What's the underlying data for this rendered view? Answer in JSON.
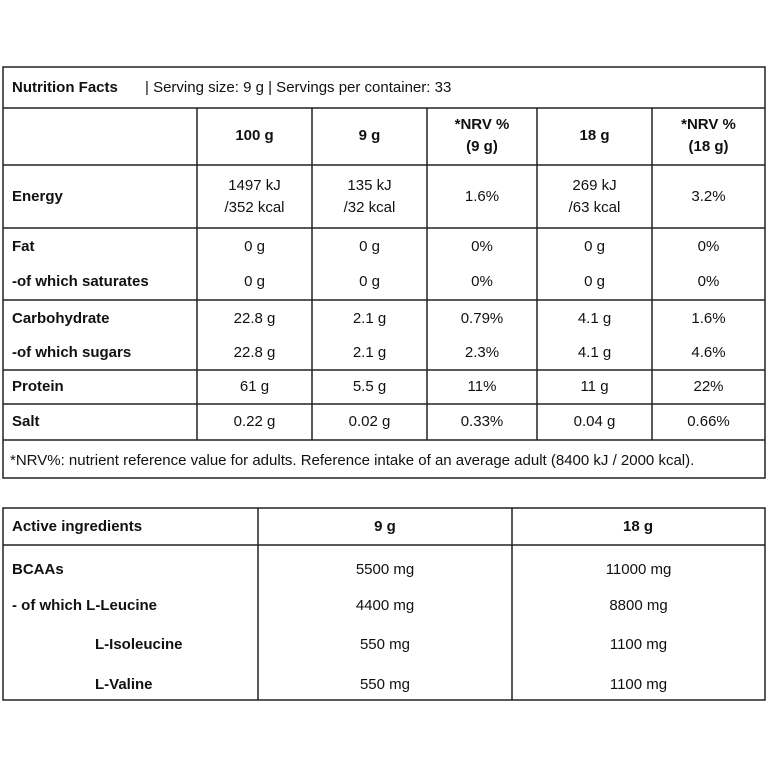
{
  "nutrition": {
    "title": "Nutrition Facts",
    "subtitle": "| Serving size: 9 g | Servings per container: 33",
    "columns": [
      "100 g",
      "9 g",
      [
        "*NRV %",
        "(9 g)"
      ],
      "18 g",
      [
        "*NRV %",
        "(18 g)"
      ]
    ],
    "rows": [
      {
        "label": "Energy",
        "values": [
          [
            "1497 kJ",
            "/352 kcal"
          ],
          [
            "135 kJ",
            "/32 kcal"
          ],
          "1.6%",
          [
            "269 kJ",
            "/63 kcal"
          ],
          "3.2%"
        ]
      },
      {
        "label": "Fat",
        "values": [
          "0 g",
          "0 g",
          "0%",
          "0 g",
          "0%"
        ]
      },
      {
        "label": "-of which saturates",
        "values": [
          "0 g",
          "0 g",
          "0%",
          "0 g",
          "0%"
        ]
      },
      {
        "label": "Carbohydrate",
        "values": [
          "22.8 g",
          "2.1 g",
          "0.79%",
          "4.1 g",
          "1.6%"
        ]
      },
      {
        "label": "-of which sugars",
        "values": [
          "22.8 g",
          "2.1 g",
          "2.3%",
          "4.1 g",
          "4.6%"
        ]
      },
      {
        "label": "Protein",
        "values": [
          "61 g",
          "5.5 g",
          "11%",
          "11 g",
          "22%"
        ]
      },
      {
        "label": "Salt",
        "values": [
          "0.22 g",
          "0.02 g",
          "0.33%",
          "0.04 g",
          "0.66%"
        ]
      }
    ],
    "footnote": "*NRV%: nutrient reference value for adults. Reference intake of an average adult (8400 kJ / 2000 kcal)."
  },
  "active": {
    "header": [
      "Active ingredients",
      "9 g",
      "18 g"
    ],
    "rows": [
      {
        "label": "BCAAs",
        "values": [
          "5500 mg",
          "11000 mg"
        ]
      },
      {
        "label": "- of which L-Leucine",
        "values": [
          "4400 mg",
          "8800 mg"
        ]
      },
      {
        "label": "L-Isoleucine",
        "values": [
          "550 mg",
          "1100 mg"
        ]
      },
      {
        "label": "L-Valine",
        "values": [
          "550 mg",
          "1100 mg"
        ]
      }
    ]
  }
}
